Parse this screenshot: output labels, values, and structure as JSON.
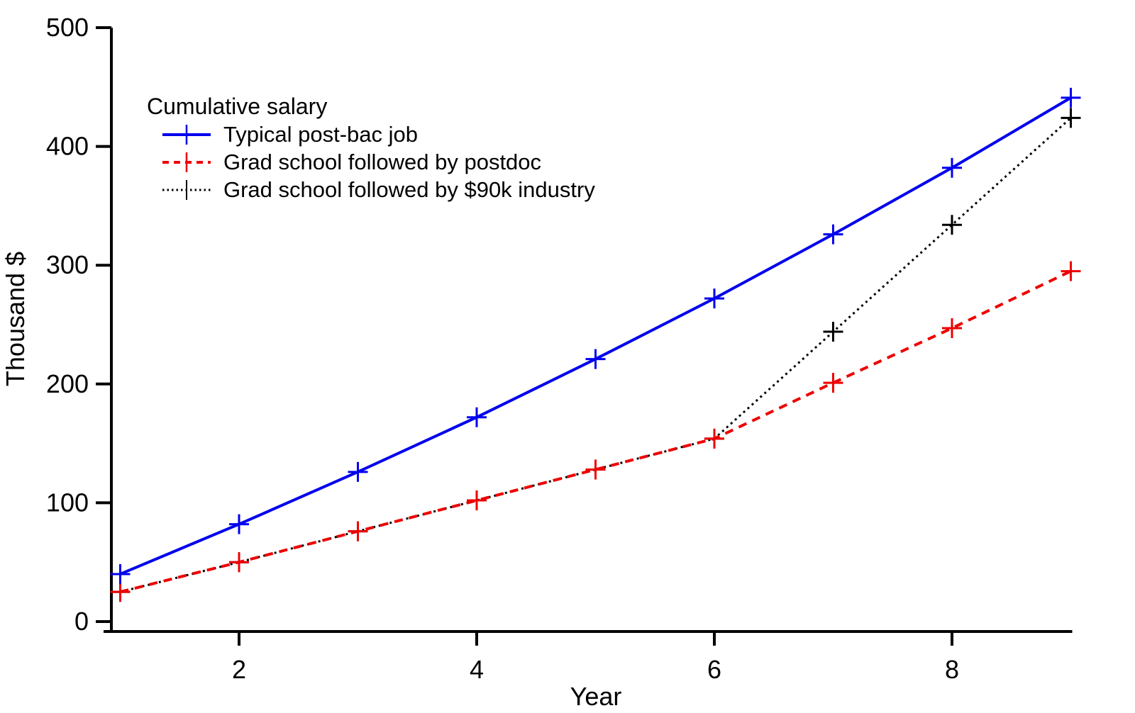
{
  "chart_data": {
    "type": "line",
    "title": "",
    "legend_title": "Cumulative salary",
    "xlabel": "Year",
    "ylabel": "Thousand $",
    "x": [
      1,
      2,
      3,
      4,
      5,
      6,
      7,
      8,
      9
    ],
    "series": [
      {
        "name": "Typical post-bac job",
        "values": [
          40,
          82,
          126,
          172,
          221,
          272,
          326,
          382,
          441
        ],
        "color": "#0000ee",
        "line_style": "solid",
        "marker": "plus"
      },
      {
        "name": "Grad school followed by postdoc",
        "values": [
          25,
          50,
          76,
          102,
          128,
          154,
          201,
          247,
          295
        ],
        "color": "#ee0000",
        "line_style": "dashed",
        "marker": "plus"
      },
      {
        "name": "Grad school followed by $90k industry",
        "values": [
          25,
          50,
          76,
          102,
          128,
          154,
          244,
          334,
          424
        ],
        "color": "#000000",
        "line_style": "dotted",
        "marker": "plus"
      }
    ],
    "xlim": [
      1,
      9
    ],
    "ylim": [
      0,
      500
    ],
    "xticks": [
      2,
      4,
      6,
      8
    ],
    "yticks": [
      0,
      100,
      200,
      300,
      400,
      500
    ],
    "grid": false,
    "legend_position": "top-left",
    "axis_color": "#000000",
    "background_color": "#ffffff"
  }
}
